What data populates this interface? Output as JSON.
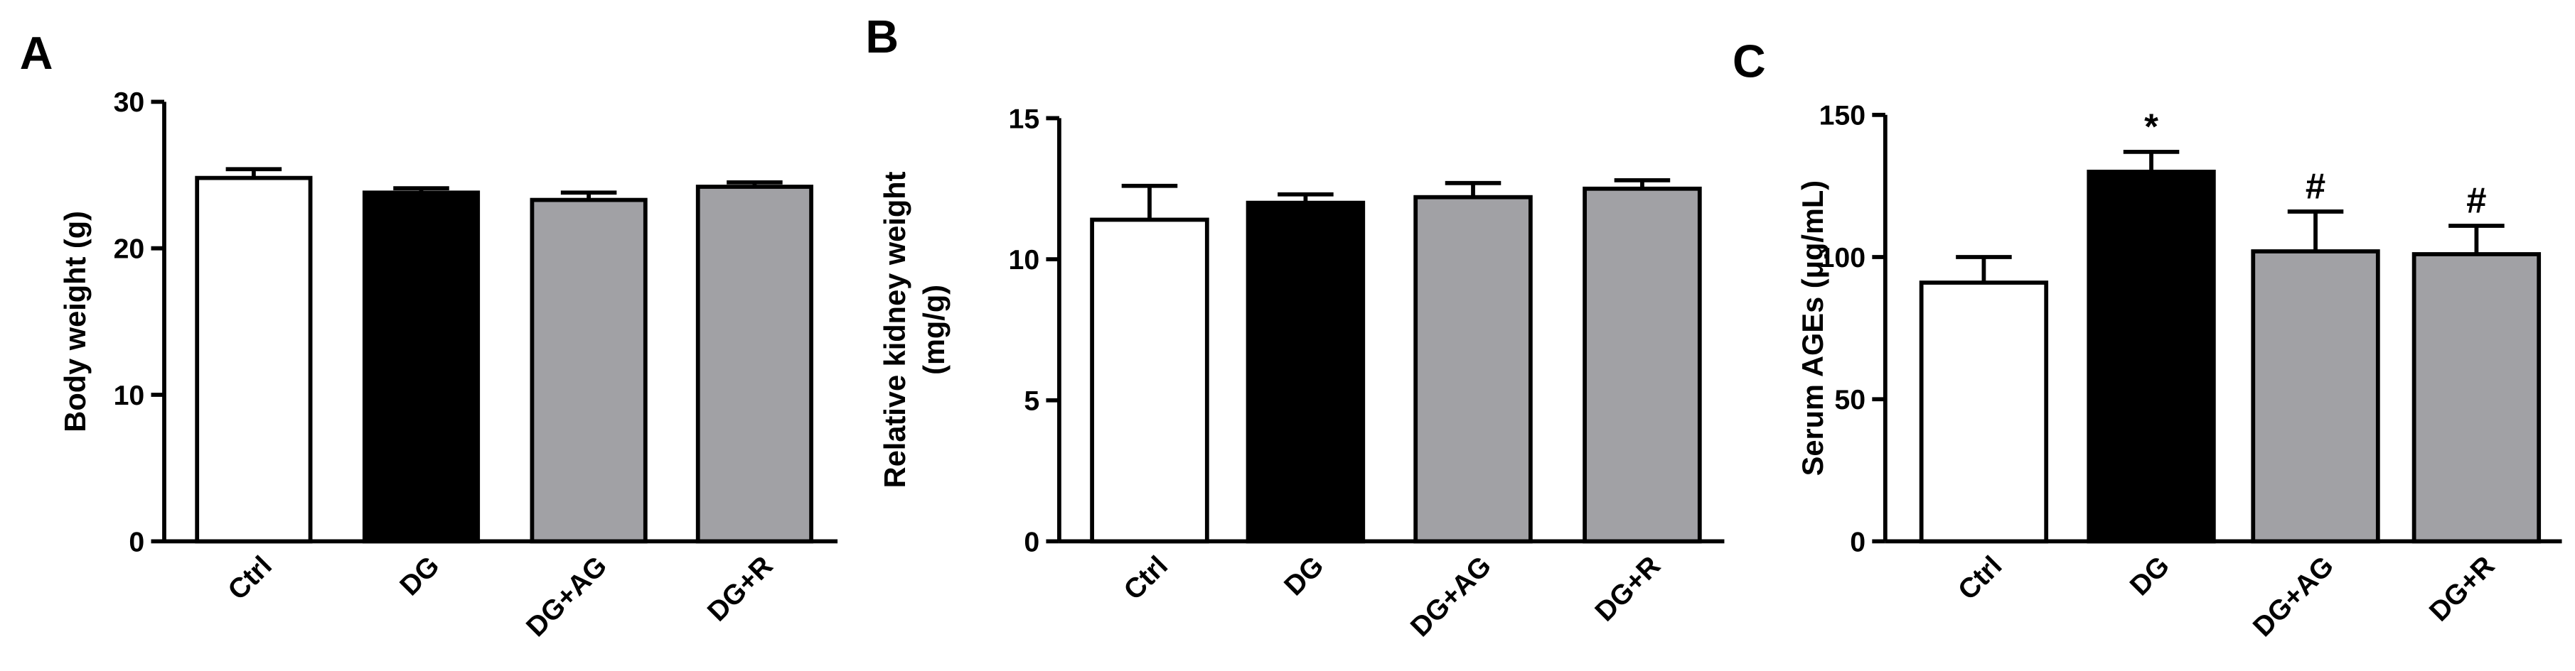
{
  "chart_data": [
    {
      "type": "bar",
      "panel": "A",
      "ylabel": [
        "Body weight (g)"
      ],
      "categories": [
        "Ctrl",
        "DG",
        "DG+AG",
        "DG+R"
      ],
      "values": [
        24.8,
        23.8,
        23.3,
        24.2
      ],
      "errors": [
        0.6,
        0.3,
        0.5,
        0.3
      ],
      "colors": [
        "#ffffff",
        "#000000",
        "#a1a1a5",
        "#a1a1a5"
      ],
      "ylim": [
        0,
        30
      ],
      "yticks": [
        0,
        10,
        20,
        30
      ]
    },
    {
      "type": "bar",
      "panel": "B",
      "ylabel": [
        "Relative kidney weight",
        "(mg/g)"
      ],
      "categories": [
        "Ctrl",
        "DG",
        "DG+AG",
        "DG+R"
      ],
      "values": [
        11.4,
        12.0,
        12.2,
        12.5
      ],
      "errors": [
        1.2,
        0.3,
        0.5,
        0.3
      ],
      "colors": [
        "#ffffff",
        "#000000",
        "#a1a1a5",
        "#a1a1a5"
      ],
      "ylim": [
        0,
        15
      ],
      "yticks": [
        0,
        5,
        10,
        15
      ]
    },
    {
      "type": "bar",
      "panel": "C",
      "ylabel": [
        "Serum AGEs (μg/mL)"
      ],
      "categories": [
        "Ctrl",
        "DG",
        "DG+AG",
        "DG+R"
      ],
      "values": [
        91,
        130,
        102,
        101
      ],
      "errors": [
        9,
        7,
        14,
        10
      ],
      "annotations": [
        null,
        "*",
        "#",
        "#"
      ],
      "colors": [
        "#ffffff",
        "#000000",
        "#a1a1a5",
        "#a1a1a5"
      ],
      "ylim": [
        0,
        150
      ],
      "yticks": [
        0,
        50,
        100,
        150
      ]
    }
  ]
}
